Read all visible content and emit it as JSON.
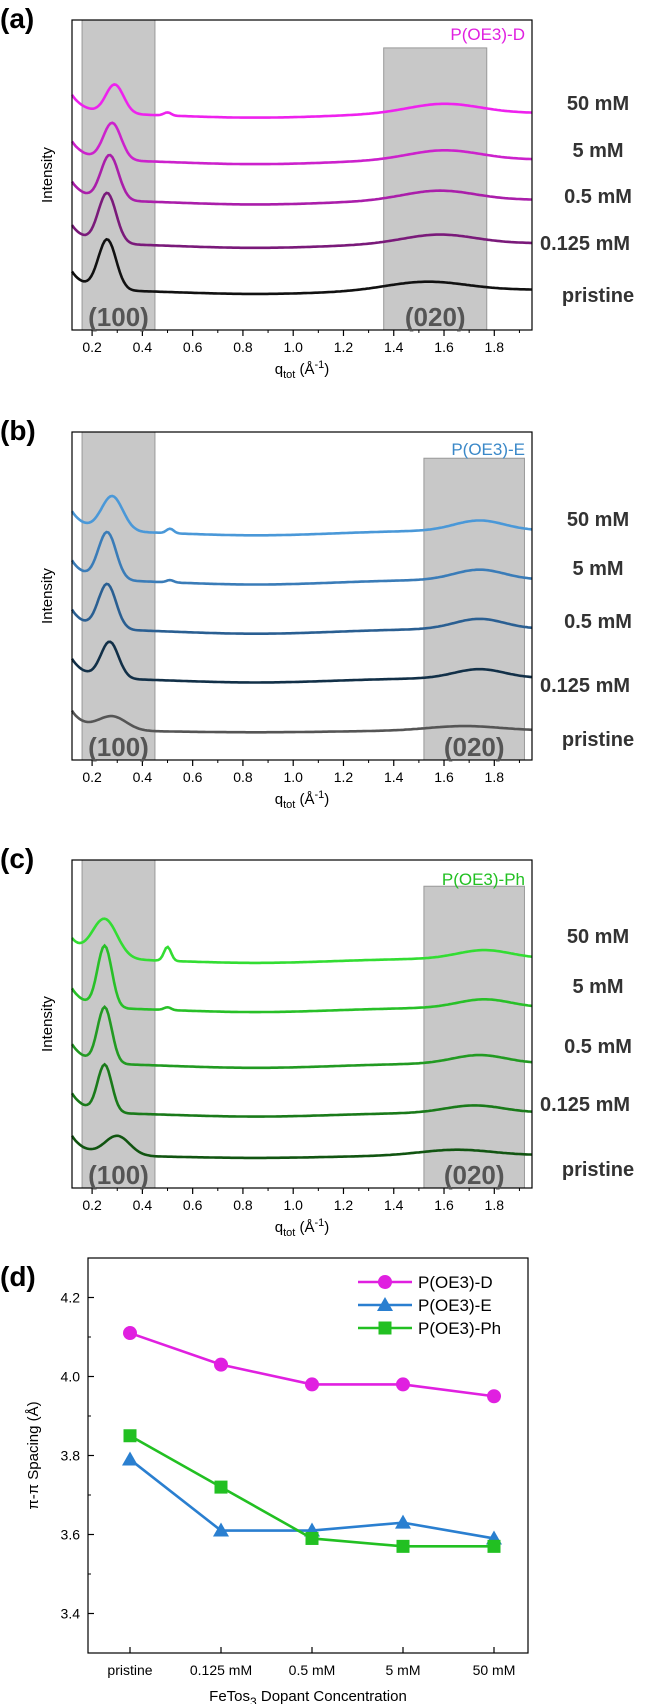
{
  "panels": [
    {
      "letter": "(a)",
      "sample": "P(OE3)-D",
      "sample_color": "#e020e0",
      "ylabel": "Intensity",
      "xlabel_main": "q",
      "xlabel_sub": "tot",
      "xlabel_unit": " (Å",
      "xlabel_sup": "-1",
      "xlabel_close": ")",
      "xlim": [
        0.12,
        1.95
      ],
      "xticks": [
        "0.2",
        "0.4",
        "0.6",
        "0.8",
        "1.0",
        "1.2",
        "1.4",
        "1.6",
        "1.8"
      ],
      "peak_labels": [
        "(100)",
        "(020)"
      ],
      "shade_100": [
        0.16,
        0.45
      ],
      "shade_020": [
        1.36,
        1.77
      ],
      "concentrations": [
        "50 mM",
        "5 mM",
        "0.5 mM",
        "0.125 mM",
        "pristine"
      ]
    },
    {
      "letter": "(b)",
      "sample": "P(OE3)-E",
      "sample_color": "#3a88c8",
      "ylabel": "Intensity",
      "xlabel_main": "q",
      "xlabel_sub": "tot",
      "xlabel_unit": " (Å",
      "xlabel_sup": "-1",
      "xlabel_close": ")",
      "xlim": [
        0.12,
        1.95
      ],
      "xticks": [
        "0.2",
        "0.4",
        "0.6",
        "0.8",
        "1.0",
        "1.2",
        "1.4",
        "1.6",
        "1.8"
      ],
      "peak_labels": [
        "(100)",
        "(020)"
      ],
      "shade_100": [
        0.16,
        0.45
      ],
      "shade_020": [
        1.52,
        1.92
      ],
      "concentrations": [
        "50 mM",
        "5 mM",
        "0.5 mM",
        "0.125 mM",
        "pristine"
      ]
    },
    {
      "letter": "(c)",
      "sample": "P(OE3)-Ph",
      "sample_color": "#22c022",
      "ylabel": "Intensity",
      "xlabel_main": "q",
      "xlabel_sub": "tot",
      "xlabel_unit": " (Å",
      "xlabel_sup": "-1",
      "xlabel_close": ")",
      "xlim": [
        0.12,
        1.95
      ],
      "xticks": [
        "0.2",
        "0.4",
        "0.6",
        "0.8",
        "1.0",
        "1.2",
        "1.4",
        "1.6",
        "1.8"
      ],
      "peak_labels": [
        "(100)",
        "(020)"
      ],
      "shade_100": [
        0.16,
        0.45
      ],
      "shade_020": [
        1.52,
        1.92
      ],
      "concentrations": [
        "50 mM",
        "5 mM",
        "0.5 mM",
        "0.125 mM",
        "pristine"
      ]
    }
  ],
  "chart_data": {
    "type": "line",
    "panel_letter": "(d)",
    "categories": [
      "pristine",
      "0.125 mM",
      "0.5 mM",
      "5 mM",
      "50 mM"
    ],
    "series": [
      {
        "name": "P(OE3)-D",
        "color": "#e020e0",
        "marker": "circle",
        "values": [
          4.11,
          4.03,
          3.98,
          3.98,
          3.95
        ]
      },
      {
        "name": "P(OE3)-E",
        "color": "#2a7fd0",
        "marker": "triangle",
        "values": [
          3.79,
          3.61,
          3.61,
          3.63,
          3.59
        ]
      },
      {
        "name": "P(OE3)-Ph",
        "color": "#22c022",
        "marker": "square",
        "values": [
          3.85,
          3.72,
          3.59,
          3.57,
          3.57
        ]
      }
    ],
    "ylabel": "π-π Spacing (Å)",
    "xlabel_main": "FeTos",
    "xlabel_sub": "3",
    "xlabel_rest": " Dopant Concentration",
    "ylim": [
      3.3,
      4.3
    ],
    "yticks": [
      "3.4",
      "3.6",
      "3.8",
      "4.0",
      "4.2"
    ],
    "legend_position": "top-right"
  }
}
